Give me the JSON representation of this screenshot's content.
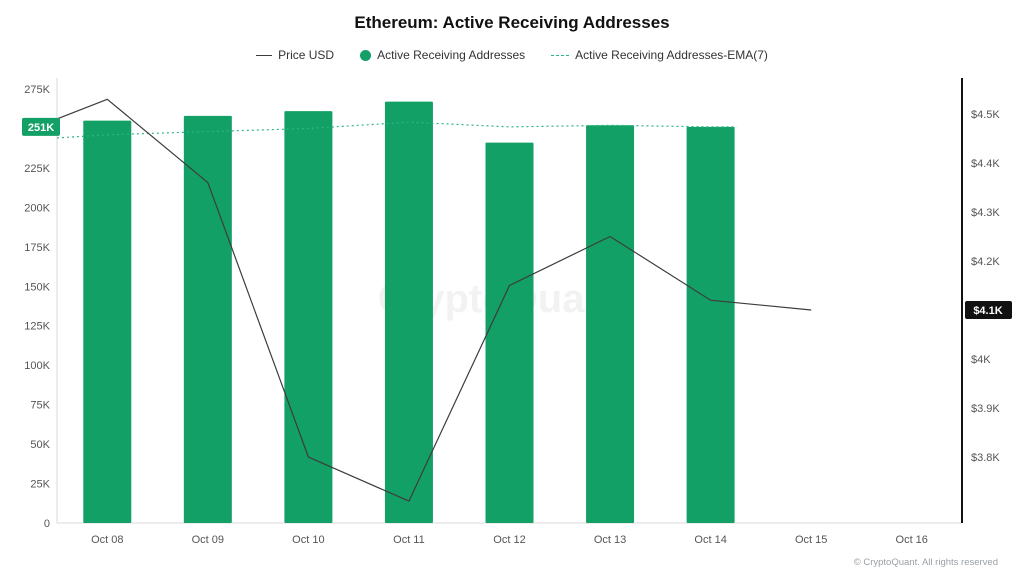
{
  "title": "Ethereum: Active Receiving Addresses",
  "legend": {
    "items": [
      {
        "label": "Price USD",
        "marker": "line"
      },
      {
        "label": "Active Receiving Addresses",
        "marker": "dot"
      },
      {
        "label": "Active Receiving Addresses-EMA(7)",
        "marker": "dashed"
      }
    ]
  },
  "colors": {
    "bar": "#13A066",
    "ema": "#2EB488",
    "price": "#3C3C3C",
    "left_badge_bg": "#13A066",
    "right_badge_bg": "#111111",
    "badge_text": "#FFFFFF",
    "axis_text": "#555555",
    "axis_line": "#D9D9D9",
    "right_axis_line": "#111111"
  },
  "watermark": "CryptoQuant",
  "footer": "© CryptoQuant. All rights reserved",
  "chart_data": {
    "type": "bar+line combo",
    "title": "Ethereum: Active Receiving Addresses",
    "categories": [
      "Oct 08",
      "Oct 09",
      "Oct 10",
      "Oct 11",
      "Oct 12",
      "Oct 13",
      "Oct 14",
      "Oct 15",
      "Oct 16"
    ],
    "left_axis": {
      "unit": "addresses",
      "min": 0,
      "max": 275000,
      "tick_step": 25000,
      "ticks": [
        "0",
        "25K",
        "50K",
        "75K",
        "100K",
        "125K",
        "150K",
        "175K",
        "200K",
        "225K",
        "250K",
        "275K"
      ],
      "current_badge": "251K",
      "badge_value_k": 251,
      "hidden_tick": "250K"
    },
    "right_axis": {
      "unit": "USD",
      "min": 3800,
      "max": 4500,
      "tick_step": 100,
      "ticks": [
        "$3.8K",
        "$3.9K",
        "$4K",
        "$4.1K",
        "$4.2K",
        "$4.3K",
        "$4.4K",
        "$4.5K"
      ],
      "current_badge": "$4.1K",
      "badge_value_kusd": 4.1,
      "hidden_tick": "$4.1K"
    },
    "series": [
      {
        "name": "Active Receiving Addresses",
        "type": "bar",
        "axis": "left",
        "values_k": [
          255,
          258,
          261,
          267,
          241,
          252,
          251,
          null,
          null
        ]
      },
      {
        "name": "Active Receiving Addresses-EMA(7)",
        "type": "dashed-line",
        "axis": "left",
        "lead_value_k": 244,
        "values_k": [
          246,
          248,
          250,
          254,
          251,
          252,
          251,
          null,
          null
        ]
      },
      {
        "name": "Price USD",
        "type": "line",
        "axis": "right",
        "lead_value_kusd": 4.49,
        "values_kusd": [
          4.53,
          4.36,
          3.8,
          3.71,
          4.15,
          4.25,
          4.12,
          4.1,
          null
        ]
      }
    ],
    "grid": "off",
    "legend_position": "top"
  }
}
